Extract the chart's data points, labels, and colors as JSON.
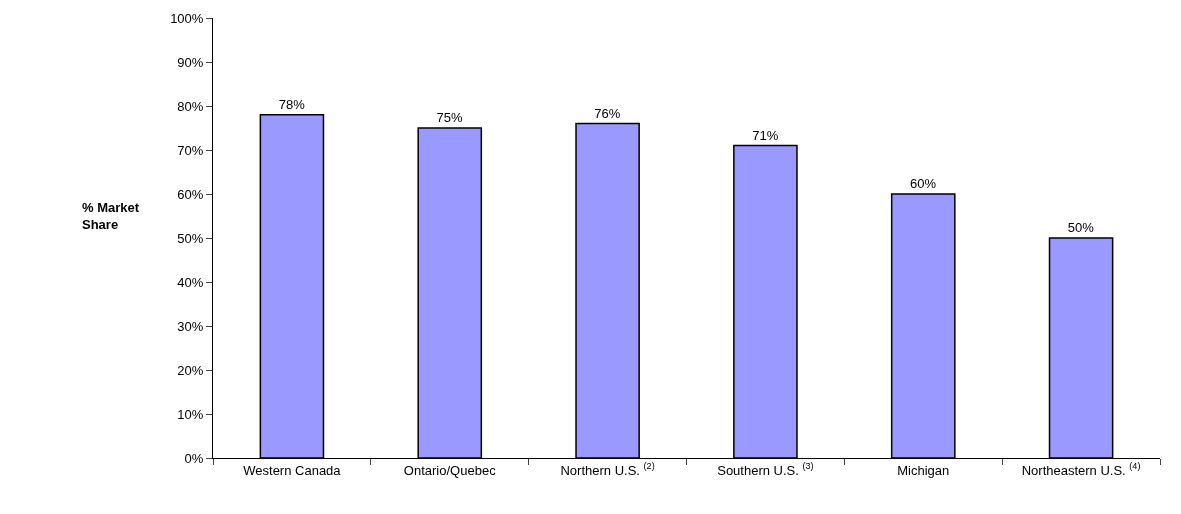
{
  "chart_data": {
    "type": "bar",
    "ylabel": "% Market Share",
    "categories": [
      "Western Canada",
      "Ontario/Quebec",
      "Northern U.S. $^{(2)}$",
      "Southern U.S. $^{(3)}$",
      "Michigan",
      "Northeastern U.S. $^{(4)}$"
    ],
    "values": [
      78,
      75,
      76,
      71,
      60,
      50
    ],
    "value_labels": [
      "78%",
      "75%",
      "76%",
      "71%",
      "60%",
      "50%"
    ],
    "color": "#9999ff",
    "ylim": [
      0,
      100
    ],
    "yticks": [
      {
        "value": 0,
        "label": "0%"
      },
      {
        "value": 10,
        "label": "10%"
      },
      {
        "value": 20,
        "label": "20%"
      },
      {
        "value": 30,
        "label": "30%"
      },
      {
        "value": 40,
        "label": "40%"
      },
      {
        "value": 50,
        "label": "50%"
      },
      {
        "value": 60,
        "label": "60%"
      },
      {
        "value": 70,
        "label": "70%"
      },
      {
        "value": 80,
        "label": "80%"
      },
      {
        "value": 90,
        "label": "90%"
      },
      {
        "value": 100,
        "label": "100%"
      }
    ],
    "grid": false,
    "legend": false
  }
}
